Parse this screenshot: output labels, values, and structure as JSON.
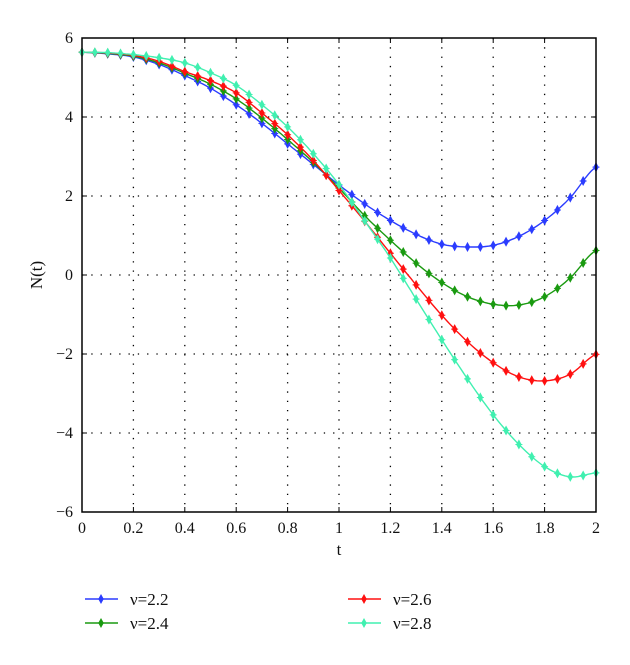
{
  "chart_data": {
    "type": "line",
    "title": "",
    "xlabel": "t",
    "ylabel": "N(t)",
    "xlim": [
      0,
      2
    ],
    "ylim": [
      -6,
      6
    ],
    "xticks": [
      "0",
      "0.2",
      "0.4",
      "0.6",
      "0.8",
      "1",
      "1.2",
      "1.4",
      "1.6",
      "1.8",
      "2"
    ],
    "yticks": [
      "6",
      "4",
      "2",
      "0",
      "−2",
      "−4",
      "−6"
    ],
    "grid": true,
    "legend_placement": "bottom",
    "x": [
      0,
      0.1,
      0.2,
      0.3,
      0.4,
      0.5,
      0.6,
      0.7,
      0.8,
      0.9,
      1.0,
      1.1,
      1.2,
      1.3,
      1.4,
      1.5,
      1.6,
      1.7,
      1.8,
      1.9,
      2.0
    ],
    "series": [
      {
        "name": "ν=2.2",
        "color": "#2b3cff",
        "values": [
          5.64,
          5.6,
          5.52,
          5.33,
          5.05,
          4.73,
          4.31,
          3.84,
          3.32,
          2.8,
          2.28,
          1.8,
          1.38,
          1.03,
          0.78,
          0.71,
          0.75,
          0.98,
          1.38,
          1.96,
          2.73
        ]
      },
      {
        "name": "ν=2.4",
        "color": "#1a9a10",
        "values": [
          5.64,
          5.61,
          5.54,
          5.37,
          5.11,
          4.83,
          4.46,
          3.97,
          3.43,
          2.85,
          2.2,
          1.5,
          0.88,
          0.3,
          -0.19,
          -0.55,
          -0.74,
          -0.76,
          -0.55,
          -0.07,
          0.62
        ]
      },
      {
        "name": "ν=2.6",
        "color": "#ff1010",
        "values": [
          5.64,
          5.62,
          5.56,
          5.41,
          5.15,
          4.92,
          4.61,
          4.1,
          3.55,
          2.9,
          2.14,
          1.36,
          0.55,
          -0.25,
          -1.02,
          -1.69,
          -2.22,
          -2.58,
          -2.68,
          -2.51,
          -2.01
        ]
      },
      {
        "name": "ν=2.8",
        "color": "#40f0b0",
        "values": [
          5.64,
          5.63,
          5.58,
          5.5,
          5.37,
          5.12,
          4.8,
          4.31,
          3.75,
          3.07,
          2.29,
          1.37,
          0.43,
          -0.61,
          -1.64,
          -2.63,
          -3.54,
          -4.29,
          -4.85,
          -5.11,
          -5.01
        ]
      }
    ]
  }
}
